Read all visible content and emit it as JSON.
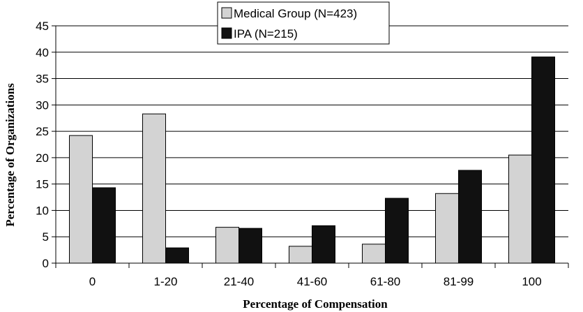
{
  "chart_data": {
    "type": "bar",
    "title": "",
    "xlabel": "Percentage of Compensation",
    "ylabel": "Percentage of Organizations",
    "categories": [
      "0",
      "1-20",
      "21-40",
      "41-60",
      "61-80",
      "81-99",
      "100"
    ],
    "series": [
      {
        "name": "Medical Group (N=423)",
        "color": "#d3d3d3",
        "values": [
          24.2,
          28.3,
          6.8,
          3.2,
          3.6,
          13.2,
          20.5
        ]
      },
      {
        "name": "IPA (N=215)",
        "color": "#111111",
        "values": [
          14.3,
          2.9,
          6.6,
          7.1,
          12.3,
          17.6,
          39.1
        ]
      }
    ],
    "ylim": [
      0,
      45
    ],
    "yticks": [
      0,
      5,
      10,
      15,
      20,
      25,
      30,
      35,
      40,
      45
    ],
    "grid": "horizontal",
    "legend_position": "top-center"
  }
}
